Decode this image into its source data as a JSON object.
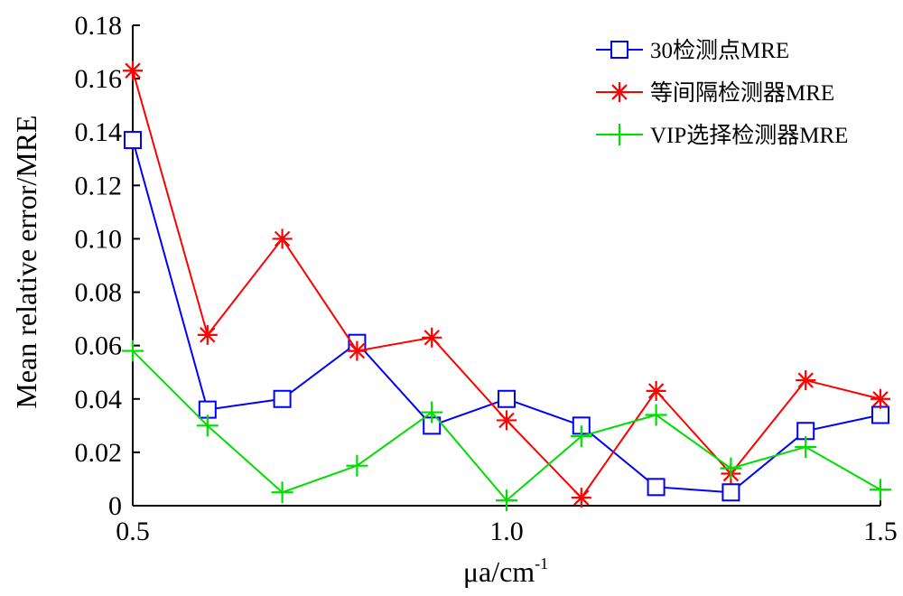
{
  "chart_data": {
    "type": "line",
    "xlabel": "μa/cm",
    "xlabel_superscript": "-1",
    "ylabel": "Mean relative error/MRE",
    "xlim": [
      0.5,
      1.5
    ],
    "ylim": [
      0,
      0.18
    ],
    "xticks": [
      "0.5",
      "1.0",
      "1.5"
    ],
    "yticks": [
      "0",
      "0.02",
      "0.04",
      "0.06",
      "0.08",
      "0.10",
      "0.12",
      "0.14",
      "0.16",
      "0.18"
    ],
    "x": [
      0.5,
      0.6,
      0.7,
      0.8,
      0.9,
      1.0,
      1.1,
      1.2,
      1.3,
      1.4,
      1.5
    ],
    "grid": false,
    "legend_position": "top-right",
    "series": [
      {
        "name": "30检测点MRE",
        "color": "#0000ff",
        "marker": "square",
        "values": [
          0.137,
          0.036,
          0.04,
          0.061,
          0.03,
          0.04,
          0.03,
          0.007,
          0.005,
          0.028,
          0.034
        ]
      },
      {
        "name": "等间隔检测器MRE",
        "color": "#ff0000",
        "marker": "asterisk",
        "values": [
          0.163,
          0.064,
          0.1,
          0.058,
          0.063,
          0.032,
          0.003,
          0.043,
          0.012,
          0.047,
          0.04
        ]
      },
      {
        "name": "VIP选择检测器MRE",
        "color": "#00dd00",
        "marker": "plus",
        "values": [
          0.058,
          0.03,
          0.005,
          0.015,
          0.035,
          0.002,
          0.026,
          0.034,
          0.014,
          0.022,
          0.006
        ]
      }
    ]
  }
}
